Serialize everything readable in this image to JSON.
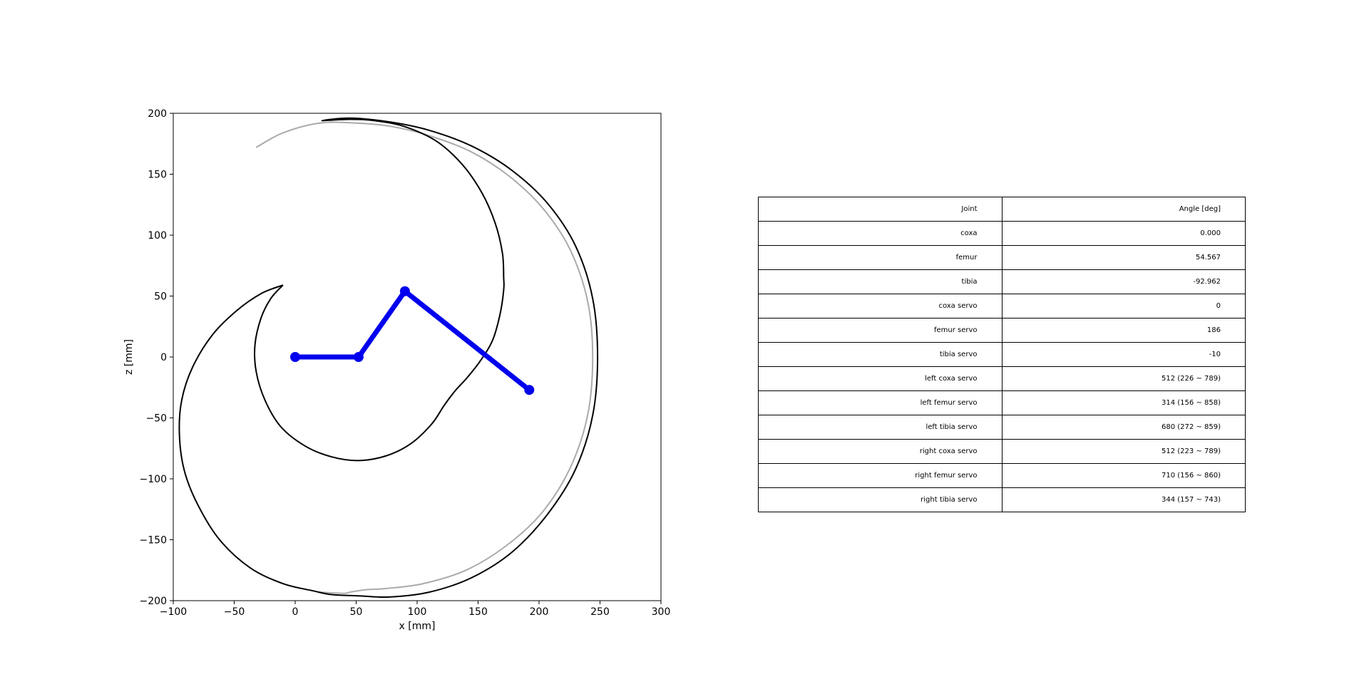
{
  "chart_data": {
    "type": "line",
    "xlabel": "x [mm]",
    "ylabel": "z [mm]",
    "xlim": [
      -100,
      300
    ],
    "ylim": [
      -200,
      200
    ],
    "xticks": [
      -100,
      -50,
      0,
      50,
      100,
      150,
      200,
      250,
      300
    ],
    "yticks": [
      -200,
      -150,
      -100,
      -50,
      0,
      50,
      100,
      150,
      200
    ],
    "grid": false,
    "series": [
      {
        "role": "workspace-boundary",
        "color": "#000000",
        "points": [
          [
            -10,
            59
          ],
          [
            -20,
            48
          ],
          [
            -28,
            32
          ],
          [
            -33,
            10
          ],
          [
            -32,
            -12
          ],
          [
            -25,
            -35
          ],
          [
            -12,
            -57
          ],
          [
            8,
            -73
          ],
          [
            30,
            -82
          ],
          [
            52,
            -85
          ],
          [
            75,
            -81
          ],
          [
            95,
            -71
          ],
          [
            112,
            -55
          ],
          [
            122,
            -40
          ],
          [
            131,
            -28
          ],
          [
            141,
            -17
          ],
          [
            152,
            -3
          ],
          [
            162,
            14
          ],
          [
            168,
            35
          ],
          [
            171,
            55
          ],
          [
            171,
            65
          ],
          [
            170,
            85
          ],
          [
            164,
            110
          ],
          [
            153,
            135
          ],
          [
            137,
            158
          ],
          [
            116,
            177
          ],
          [
            90,
            189
          ],
          [
            65,
            194
          ],
          [
            45,
            195
          ],
          [
            22,
            194
          ],
          [
            45,
            196
          ],
          [
            77,
            193
          ],
          [
            110,
            186
          ],
          [
            145,
            173
          ],
          [
            178,
            153
          ],
          [
            207,
            126
          ],
          [
            230,
            91
          ],
          [
            244,
            48
          ],
          [
            248,
            0
          ],
          [
            244,
            -48
          ],
          [
            230,
            -92
          ],
          [
            207,
            -129
          ],
          [
            178,
            -160
          ],
          [
            145,
            -181
          ],
          [
            110,
            -193
          ],
          [
            77,
            -197
          ],
          [
            52,
            -196
          ],
          [
            30,
            -195
          ],
          [
            15,
            -192
          ],
          [
            -10,
            -186
          ],
          [
            -37,
            -173
          ],
          [
            -62,
            -150
          ],
          [
            -80,
            -121
          ],
          [
            -91,
            -93
          ],
          [
            -95,
            -63
          ],
          [
            -93,
            -35
          ],
          [
            -84,
            -8
          ],
          [
            -68,
            18
          ],
          [
            -48,
            38
          ],
          [
            -28,
            52
          ],
          [
            -10,
            59
          ]
        ]
      },
      {
        "role": "workspace-boundary-reference",
        "color": "#aaaaaa",
        "points": [
          [
            -32,
            172
          ],
          [
            -10,
            184
          ],
          [
            20,
            192
          ],
          [
            50,
            192
          ],
          [
            80,
            189
          ],
          [
            112,
            181
          ],
          [
            145,
            168
          ],
          [
            176,
            148
          ],
          [
            204,
            121
          ],
          [
            226,
            87
          ],
          [
            240,
            45
          ],
          [
            244,
            0
          ],
          [
            240,
            -47
          ],
          [
            226,
            -90
          ],
          [
            203,
            -127
          ],
          [
            173,
            -155
          ],
          [
            140,
            -175
          ],
          [
            105,
            -186
          ],
          [
            75,
            -190
          ],
          [
            58,
            -191
          ],
          [
            45,
            -193
          ],
          [
            40,
            -194
          ],
          [
            20,
            -193
          ]
        ]
      },
      {
        "role": "leg",
        "color": "#0000ee",
        "points": [
          [
            0,
            0
          ],
          [
            52,
            0
          ],
          [
            90,
            54
          ],
          [
            192,
            -27
          ]
        ]
      }
    ]
  },
  "table": {
    "header": [
      "Joint",
      "Angle [deg]"
    ],
    "rows": [
      [
        "coxa",
        "0.000"
      ],
      [
        "femur",
        "54.567"
      ],
      [
        "tibia",
        "-92.962"
      ],
      [
        "coxa servo",
        "0"
      ],
      [
        "femur servo",
        "186"
      ],
      [
        "tibia servo",
        "-10"
      ],
      [
        "left coxa servo",
        "512 (226 ~ 789)"
      ],
      [
        "left femur servo",
        "314 (156 ~ 858)"
      ],
      [
        "left tibia servo",
        "680 (272 ~ 859)"
      ],
      [
        "right coxa servo",
        "512 (223 ~ 789)"
      ],
      [
        "right femur servo",
        "710 (156 ~ 860)"
      ],
      [
        "right tibia servo",
        "344 (157 ~ 743)"
      ]
    ]
  }
}
